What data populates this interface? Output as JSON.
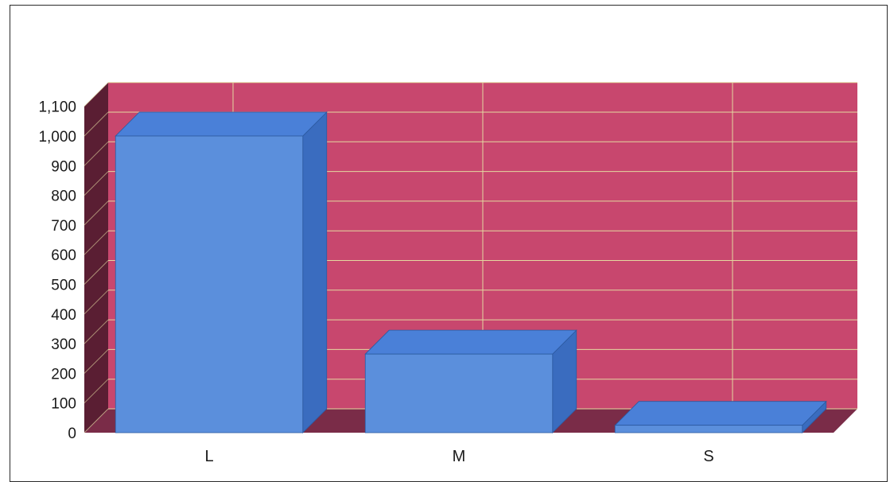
{
  "chart_data": {
    "type": "bar",
    "style": "3d",
    "categories": [
      "L",
      "M",
      "S"
    ],
    "values": [
      1000,
      265,
      25
    ],
    "title": "",
    "xlabel": "",
    "ylabel": "",
    "ylim": [
      0,
      1100
    ],
    "yticks": [
      "0",
      "100",
      "200",
      "300",
      "400",
      "500",
      "600",
      "700",
      "800",
      "900",
      "1,000",
      "1,100"
    ],
    "grid": true,
    "legend": "none",
    "colors": {
      "back_wall": "#c8476e",
      "side_wall": "#5a1e33",
      "floor": "#7a2c48",
      "grid": "#e3d9a0",
      "bar_front": "#5b8fdc",
      "bar_top": "#4a80d8",
      "bar_side": "#3a6cbf",
      "bar_stroke": "#2c5aa0"
    }
  }
}
